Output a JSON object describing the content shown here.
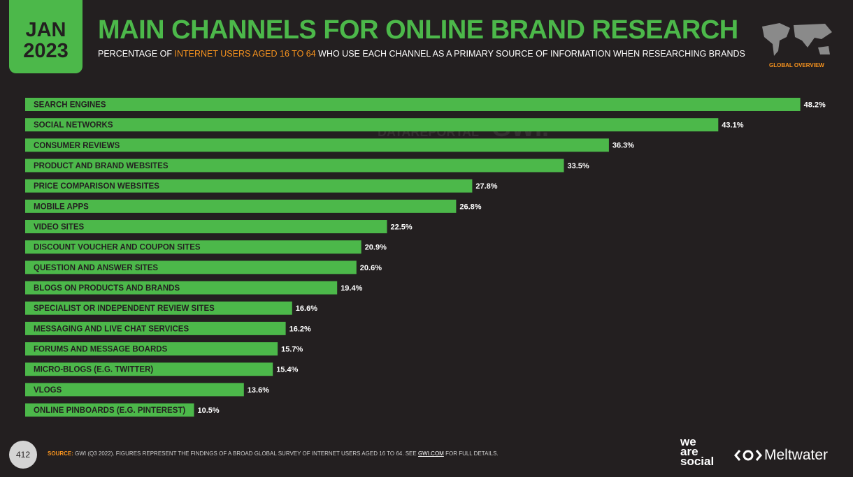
{
  "header": {
    "month": "JAN",
    "year": "2023",
    "title": "MAIN CHANNELS FOR ONLINE BRAND RESEARCH",
    "subtitle": [
      "PERCENTAGE OF",
      "INTERNET USERS AGED 16 TO 64",
      "WHO USE EACH CHANNEL AS A PRIMARY SOURCE OF INFORMATION WHEN RESEARCHING BRANDS"
    ],
    "badge": "GLOBAL OVERVIEW"
  },
  "chart_data": {
    "type": "bar",
    "orientation": "horizontal",
    "color": "#4cb84a",
    "categories": [
      "SEARCH ENGINES",
      "SOCIAL NETWORKS",
      "CONSUMER REVIEWS",
      "PRODUCT AND BRAND WEBSITES",
      "PRICE COMPARISON WEBSITES",
      "MOBILE APPS",
      "VIDEO SITES",
      "DISCOUNT VOUCHER AND COUPON SITES",
      "QUESTION AND ANSWER SITES",
      "BLOGS ON PRODUCTS AND BRANDS",
      "SPECIALIST OR INDEPENDENT REVIEW SITES",
      "MESSAGING AND LIVE CHAT SERVICES",
      "FORUMS AND MESSAGE BOARDS",
      "MICRO-BLOGS (E.G. TWITTER)",
      "VLOGS",
      "ONLINE PINBOARDS (E.G. PINTEREST)"
    ],
    "values": [
      48.2,
      43.1,
      36.3,
      33.5,
      27.8,
      26.8,
      22.5,
      20.9,
      20.6,
      19.4,
      16.6,
      16.2,
      15.7,
      15.4,
      13.6,
      10.5
    ],
    "value_labels": [
      "48.2%",
      "43.1%",
      "36.3%",
      "33.5%",
      "27.8%",
      "26.8%",
      "22.5%",
      "20.9%",
      "20.6%",
      "19.4%",
      "16.6%",
      "16.2%",
      "15.7%",
      "15.4%",
      "13.6%",
      "10.5%"
    ]
  },
  "watermark": [
    "DATAREPORTAL",
    "GWI."
  ],
  "footer": {
    "page": "412",
    "source_label": "SOURCE:",
    "source_text": "GWI (Q3 2022). FIGURES REPRESENT THE FINDINGS OF A BROAD GLOBAL SURVEY OF INTERNET USERS AGED 16 TO 64. SEE",
    "source_link": "GWI.COM",
    "source_end": "FOR FULL DETAILS.",
    "logo_we_are_social": [
      "we",
      "are",
      "social"
    ],
    "logo_meltwater": "Meltwater"
  }
}
